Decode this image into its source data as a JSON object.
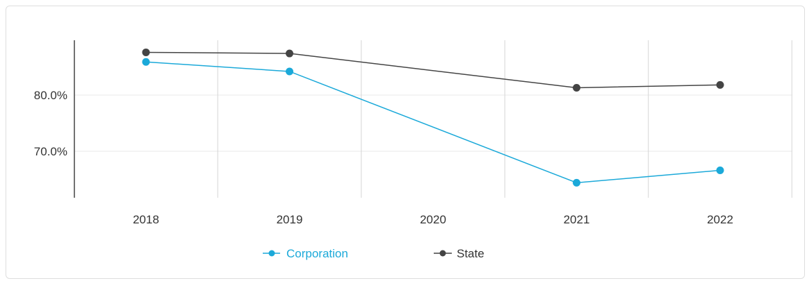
{
  "chart_data": {
    "type": "line",
    "title": "",
    "xlabel": "",
    "ylabel": "",
    "categories": [
      "2018",
      "2019",
      "2020",
      "2021",
      "2022"
    ],
    "ylim": [
      60,
      89
    ],
    "yticks": [
      70,
      80
    ],
    "ytick_labels": [
      "70.0%",
      "80.0%"
    ],
    "grid": true,
    "legend_position": "bottom",
    "series": [
      {
        "name": "Corporation",
        "color": "#1ba9d9",
        "values": [
          85.9,
          84.2,
          null,
          64.4,
          66.6
        ],
        "marker_visible": [
          true,
          true,
          false,
          true,
          true
        ]
      },
      {
        "name": "State",
        "color": "#444444",
        "values": [
          87.6,
          87.4,
          null,
          81.3,
          81.8
        ],
        "marker_visible": [
          true,
          true,
          false,
          true,
          true
        ]
      }
    ]
  },
  "legend": {
    "items": [
      {
        "label": "Corporation",
        "color": "#1ba9d9"
      },
      {
        "label": "State",
        "color": "#444444"
      }
    ]
  }
}
